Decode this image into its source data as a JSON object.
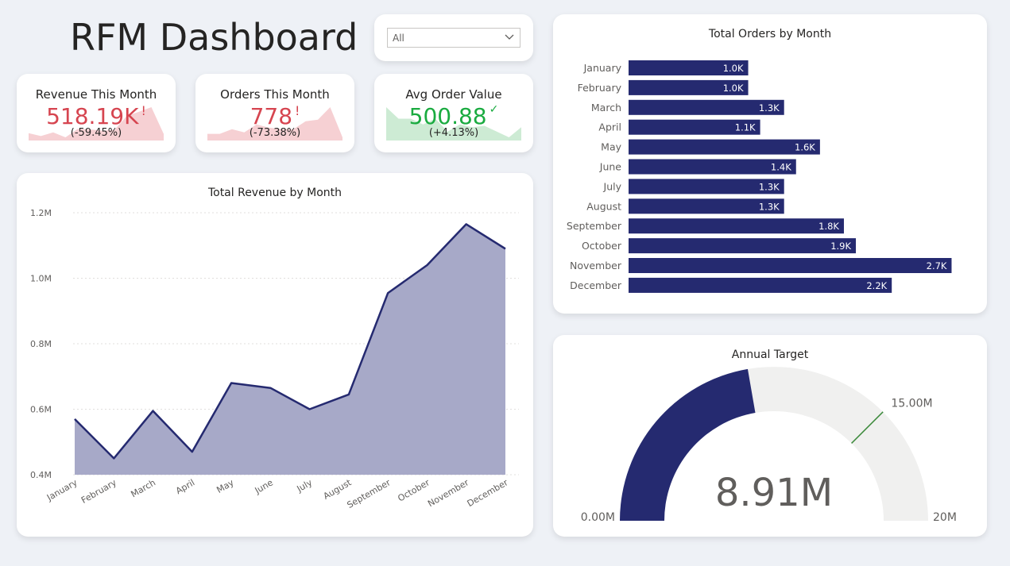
{
  "page": {
    "title": "RFM Dashboard"
  },
  "slicer": {
    "value": "All"
  },
  "kpis": [
    {
      "title": "Revenue This Month",
      "value": "518.19K",
      "status_mark": "!",
      "delta": "(-59.45%)",
      "color": "#d64550",
      "fill": "#f6d0d3",
      "spark": [
        0.54,
        0.47,
        0.56,
        0.44,
        0.64,
        0.63,
        0.6,
        0.62,
        0.95,
        1.05,
        1.16,
        0.52
      ]
    },
    {
      "title": "Orders This Month",
      "value": "778",
      "status_mark": "!",
      "delta": "(-73.38%)",
      "color": "#d64550",
      "fill": "#f6d0d3",
      "spark": [
        1.0,
        1.0,
        1.3,
        1.1,
        1.6,
        1.4,
        1.3,
        1.3,
        1.8,
        1.9,
        2.7,
        0.78
      ]
    },
    {
      "title": "Avg Order Value",
      "value": "500.88",
      "status_mark": "✓",
      "delta": "(+4.13%)",
      "color": "#1aab40",
      "fill": "#cdebd4",
      "spark": [
        640,
        560,
        560,
        520,
        560,
        470,
        520,
        500,
        510,
        470,
        430,
        500
      ]
    }
  ],
  "revenue_chart": {
    "title": "Total Revenue by Month",
    "y_ticks": [
      "1.2M",
      "1.0M",
      "0.8M",
      "0.6M",
      "0.4M"
    ],
    "line_color": "#252a70",
    "area_color": "#a7a9c8"
  },
  "orders_chart": {
    "title": "Total Orders by Month",
    "bar_color": "#252a70"
  },
  "gauge": {
    "title": "Annual Target",
    "value_label": "8.91M",
    "min_label": "0.00M",
    "max_label": "20M",
    "target_label": "15.00M",
    "value": 8.91,
    "min": 0,
    "max": 20,
    "target": 15,
    "fill_color": "#252a70",
    "track_color": "#f0f0ef",
    "target_color": "#3c8a3c"
  },
  "chart_data": [
    {
      "type": "area",
      "title": "Total Revenue by Month",
      "categories": [
        "January",
        "February",
        "March",
        "April",
        "May",
        "June",
        "July",
        "August",
        "September",
        "October",
        "November",
        "December"
      ],
      "values": [
        0.57,
        0.45,
        0.595,
        0.47,
        0.68,
        0.665,
        0.6,
        0.645,
        0.955,
        1.04,
        1.165,
        1.09
      ],
      "unit": "M",
      "ylim": [
        0.4,
        1.2
      ],
      "grid": true
    },
    {
      "type": "bar",
      "orientation": "horizontal",
      "title": "Total Orders by Month",
      "categories": [
        "January",
        "February",
        "March",
        "April",
        "May",
        "June",
        "July",
        "August",
        "September",
        "October",
        "November",
        "December"
      ],
      "values": [
        1.0,
        1.0,
        1.3,
        1.1,
        1.6,
        1.4,
        1.3,
        1.3,
        1.8,
        1.9,
        2.7,
        2.2
      ],
      "labels": [
        "1.0K",
        "1.0K",
        "1.3K",
        "1.1K",
        "1.6K",
        "1.4K",
        "1.3K",
        "1.3K",
        "1.8K",
        "1.9K",
        "2.7K",
        "2.2K"
      ],
      "unit": "K"
    }
  ]
}
